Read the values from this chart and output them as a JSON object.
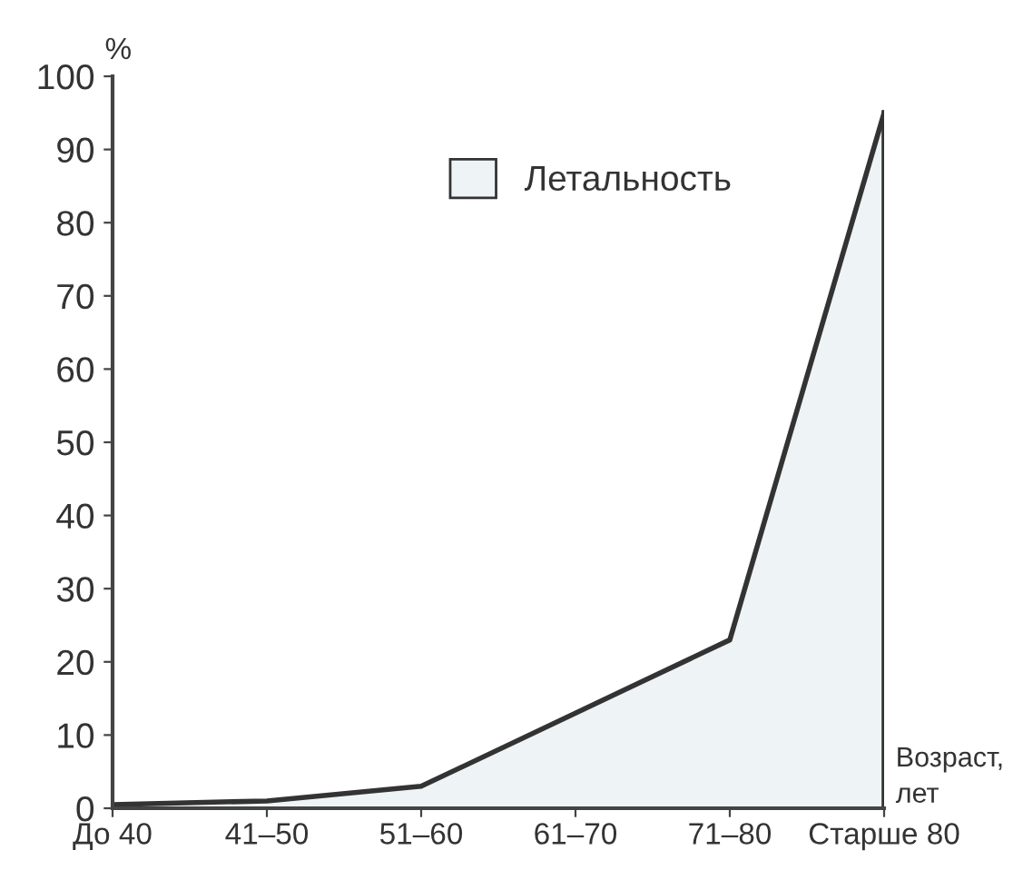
{
  "chart_data": {
    "type": "area",
    "ylabel": "%",
    "xlabel": "Возраст,\nлет",
    "categories": [
      "До 40",
      "41–50",
      "51–60",
      "61–70",
      "71–80",
      "Старше 80"
    ],
    "series": [
      {
        "name": "Летальность",
        "color": "#eef3f5",
        "values": [
          0.5,
          1,
          3,
          13,
          23,
          95
        ]
      }
    ],
    "ylim": [
      0,
      100
    ],
    "yticks": [
      0,
      10,
      20,
      30,
      40,
      50,
      60,
      70,
      80,
      90,
      100
    ],
    "grid": false,
    "legend": "top"
  }
}
